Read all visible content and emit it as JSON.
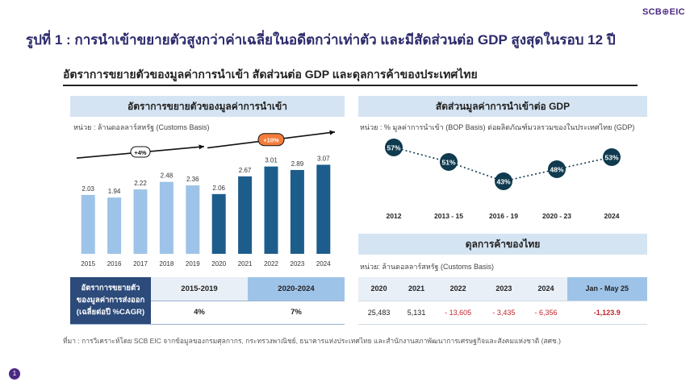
{
  "brand": {
    "logo": "SCB⊕EIC"
  },
  "title": "รูปที่ 1 : การนำเข้าขยายตัวสูงกว่าค่าเฉลี่ยในอดีตกว่าเท่าตัว และมีสัดส่วนต่อ GDP สูงสุดในรอบ 12 ปี",
  "subtitle": "อัตราการขยายตัวของมูลค่าการนำเข้า สัดส่วนต่อ GDP และดุลการค้าของประเทศไทย",
  "colors": {
    "bar_light": "#9ec3e8",
    "bar_dark": "#1d5d8c",
    "navy": "#0f3a4f",
    "highlight": "#f47c3c"
  },
  "chart_data": [
    {
      "type": "bar",
      "title": "อัตราการขยายตัวของมูลค่าการนำเข้า",
      "unit": "หน่วย : ล้านดอลลาร์สหรัฐ (Customs Basis)",
      "categories": [
        "2015",
        "2016",
        "2017",
        "2018",
        "2019",
        "2020",
        "2021",
        "2022",
        "2023",
        "2024"
      ],
      "values": [
        2.03,
        1.94,
        2.22,
        2.48,
        2.36,
        2.06,
        2.67,
        3.01,
        2.89,
        3.07
      ],
      "value_labels": [
        "2.03",
        "1.94",
        "2.22",
        "2.48",
        "2.36",
        "2.06",
        "2.67",
        "3.01",
        "2.89",
        "3.07"
      ],
      "annotations": [
        {
          "label": "+4%",
          "span": "2015-2019"
        },
        {
          "label": "+10%",
          "span": "2020-2024"
        }
      ]
    },
    {
      "type": "line",
      "title": "สัดส่วนมูลค่าการนำเข้าต่อ GDP",
      "unit": "หน่วย : % มูลค่าการนำเข้า (BOP Basis) ต่อผลิตภัณฑ์มวลรวมของในประเทศไทย (GDP)",
      "categories": [
        "2012",
        "2013 - 15",
        "2016 - 19",
        "2020 - 23",
        "2024"
      ],
      "values": [
        57,
        51,
        43,
        48,
        53
      ],
      "value_labels": [
        "57%",
        "51%",
        "43%",
        "48%",
        "53%"
      ]
    }
  ],
  "cagr_table": {
    "row_header": [
      "อัตราการขยายตัว",
      "ของมูลค่าการส่งออก",
      "(เฉลี่ยต่อปี %CAGR)"
    ],
    "columns": [
      "2015-2019",
      "2020-2024"
    ],
    "values": [
      "4%",
      "7%"
    ]
  },
  "trade_balance": {
    "title": "ดุลการค้าของไทย",
    "unit": "หน่วย: ล้านดอลลาร์สหรัฐ (Customs Basis)",
    "columns": [
      "2020",
      "2021",
      "2022",
      "2023",
      "2024",
      "Jan - May 25"
    ],
    "values": [
      "25,483",
      "5,131",
      "- 13,605",
      "- 3,435",
      "- 6,356",
      "-1,123.9"
    ]
  },
  "source": "ที่มา : การวิเคราะห์โดย SCB EIC จากข้อมูลของกรมศุลกากร, กระทรวงพาณิชย์, ธนาคารแห่งประเทศไทย และสำนักงานสภาพัฒนาการเศรษฐกิจและสังคมแห่งชาติ (สศช.)",
  "page_number": "1"
}
